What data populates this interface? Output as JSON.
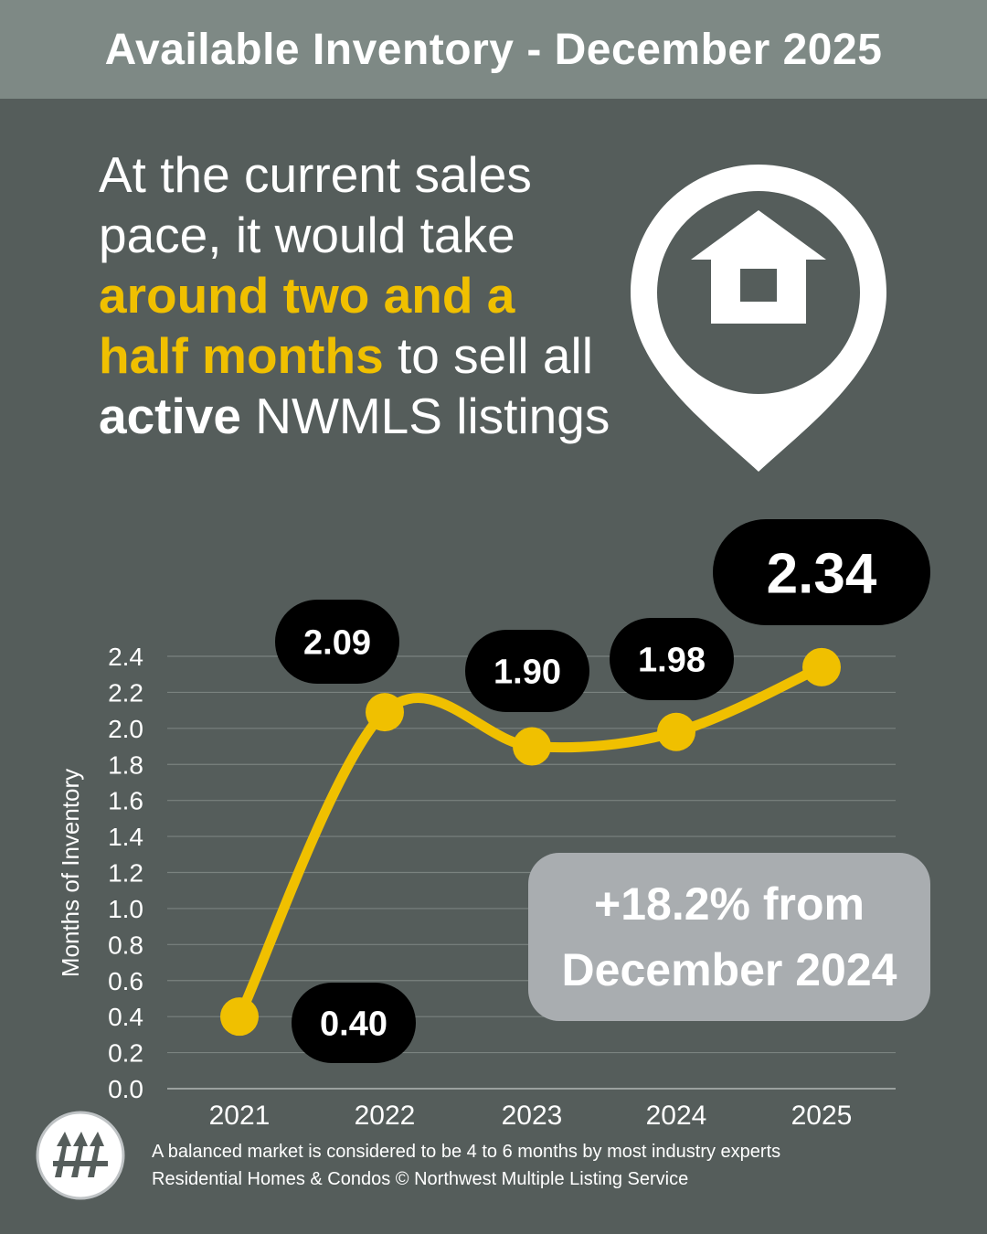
{
  "header": {
    "title": "Available Inventory - December 2025"
  },
  "headline": {
    "part1": "At the current sales pace, it would take ",
    "highlight": "around two and a half months",
    "part2": " to sell all ",
    "bold": "active",
    "part3": " NWMLS listings"
  },
  "icons": {
    "pin": "location-pin-house-icon",
    "logo": "nwmls-logo"
  },
  "change_box": {
    "line1": "+18.2% from",
    "line2": "December 2024"
  },
  "footer": {
    "line1": "A balanced market is considered to be 4 to 6 months by most industry experts",
    "line2": "Residential Homes & Condos © Northwest Multiple Listing Service"
  },
  "colors": {
    "background": "#555d5b",
    "header": "#7e8985",
    "accent": "#f0c000",
    "label_bg": "#000000",
    "change_box": "#a9adb0"
  },
  "chart_data": {
    "type": "line",
    "categories": [
      "2021",
      "2022",
      "2023",
      "2024",
      "2025"
    ],
    "values": [
      0.4,
      2.09,
      1.9,
      1.98,
      2.34
    ],
    "data_labels": [
      "0.40",
      "2.09",
      "1.90",
      "1.98",
      "2.34"
    ],
    "ylabel": "Months of Inventory",
    "xlabel": "",
    "ylim": [
      0,
      2.4
    ],
    "yticks": [
      "0.0",
      "0.2",
      "0.4",
      "0.6",
      "0.8",
      "1.0",
      "1.2",
      "1.4",
      "1.6",
      "1.8",
      "2.0",
      "2.2",
      "2.4"
    ],
    "grid": true,
    "line_color": "#f0c000",
    "smooth": true
  }
}
